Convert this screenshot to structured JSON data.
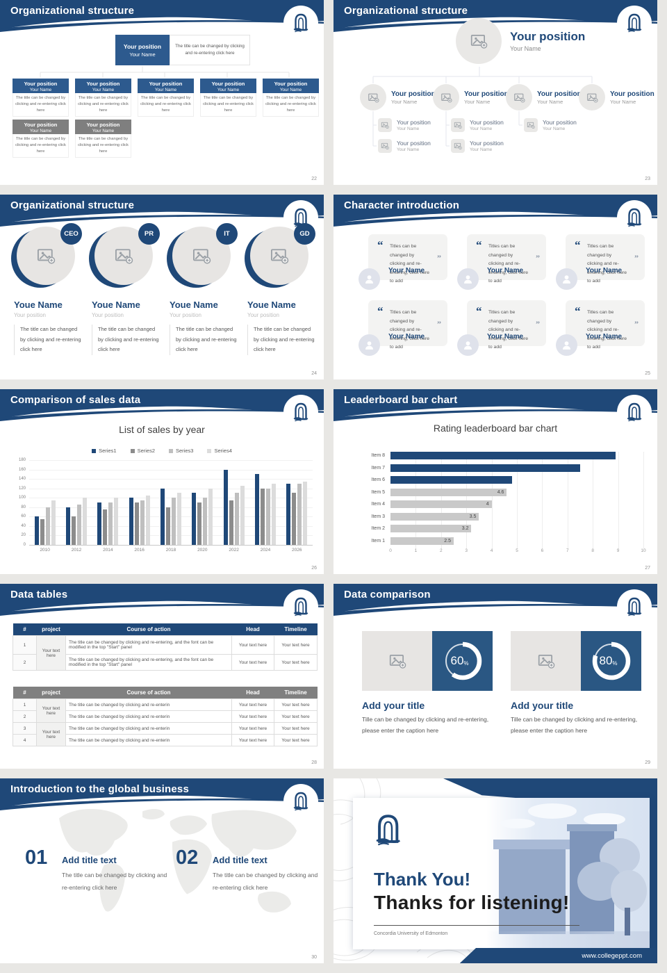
{
  "colors": {
    "primary": "#1F4878",
    "box_blue": "#2D5A8E",
    "box_gray": "#7F7F7F",
    "panel_blue": "#2A5783",
    "bar_gray": "#C9C9C9"
  },
  "chart_data": [
    {
      "type": "bar",
      "title": "List of sales by year",
      "categories": [
        "2010",
        "2012",
        "2014",
        "2016",
        "2018",
        "2020",
        "2022",
        "2024",
        "2026"
      ],
      "series": [
        {
          "name": "Series1",
          "values": [
            60,
            80,
            90,
            100,
            120,
            110,
            160,
            150,
            130
          ]
        },
        {
          "name": "Series2",
          "values": [
            55,
            60,
            75,
            90,
            80,
            90,
            95,
            120,
            110
          ]
        },
        {
          "name": "Series3",
          "values": [
            80,
            85,
            90,
            95,
            100,
            100,
            110,
            120,
            130
          ]
        },
        {
          "name": "Series4",
          "values": [
            95,
            100,
            100,
            105,
            110,
            120,
            125,
            130,
            135
          ]
        }
      ],
      "colors": [
        "#1F4878",
        "#8C8C8C",
        "#BFBFBF",
        "#DCDCDC"
      ],
      "ylim": [
        0,
        180
      ],
      "ytick_step": 20,
      "grid": true,
      "legend_position": "top"
    },
    {
      "type": "bar-horizontal",
      "title": "Rating leaderboard bar chart",
      "categories": [
        "Item 8",
        "Item 7",
        "Item 6",
        "Item 5",
        "Item 4",
        "Item 3",
        "Item 2",
        "Item 1"
      ],
      "values": [
        8.9,
        7.5,
        4.8,
        4.6,
        4,
        3.5,
        3.2,
        2.5
      ],
      "data_labels": [
        null,
        null,
        null,
        "4.6",
        "4",
        "3.5",
        "3.2",
        "2.5"
      ],
      "bar_colors": [
        "#1F4878",
        "#1F4878",
        "#1F4878",
        "#C9C9C9",
        "#C9C9C9",
        "#C9C9C9",
        "#C9C9C9",
        "#C9C9C9"
      ],
      "xlim": [
        0,
        10
      ],
      "xtick_step": 1,
      "grid": true
    }
  ],
  "s22": {
    "title": "Organizational structure",
    "page": "22",
    "root": {
      "position": "Your position",
      "name": "Your Name",
      "desc": "The title can be changed by clicking and re-entering click here"
    },
    "row1": [
      {
        "position": "Your position",
        "name": "Your Name",
        "desc": "The title can be changed by clicking and re-entering click here"
      },
      {
        "position": "Your position",
        "name": "Your Name",
        "desc": "The title can be changed by clicking and re-entering click here"
      },
      {
        "position": "Your position",
        "name": "Your Name",
        "desc": "The title can be changed by clicking and re-entering click here"
      },
      {
        "position": "Your position",
        "name": "Your Name",
        "desc": "The title can be changed by clicking and re-entering click here"
      },
      {
        "position": "Your position",
        "name": "Your Name",
        "desc": "The title can be changed by clicking and re-entering click here"
      }
    ],
    "row2": [
      {
        "position": "Your position",
        "name": "Your Name",
        "desc": "The title can be changed by clicking and re-entering click here"
      },
      {
        "position": "Your position",
        "name": "Your Name",
        "desc": "The title can be changed by clicking and re-entering click here"
      }
    ]
  },
  "s23": {
    "title": "Organizational structure",
    "page": "23",
    "root": {
      "position": "Your position",
      "name": "Your Name"
    },
    "level1": [
      {
        "position": "Your position",
        "name": "Your Name"
      },
      {
        "position": "Your position",
        "name": "Your Name"
      },
      {
        "position": "Your position",
        "name": "Your Name"
      },
      {
        "position": "Your position",
        "name": "Your Name"
      }
    ],
    "level2": [
      {
        "position": "Your position",
        "name": "Your Name"
      },
      {
        "position": "Your position",
        "name": "Your Name"
      },
      {
        "position": "Your position",
        "name": "Your Name"
      }
    ],
    "level3": [
      {
        "position": "Your position",
        "name": "Your Name"
      },
      {
        "position": "Your position",
        "name": "Your Name"
      }
    ]
  },
  "s24": {
    "title": "Organizational structure",
    "page": "24",
    "members": [
      {
        "badge": "CEO",
        "name": "Youe Name",
        "position": "Your position",
        "desc": "The title can be changed by clicking and re-entering click here"
      },
      {
        "badge": "PR",
        "name": "Youe Name",
        "position": "Your position",
        "desc": "The title can be changed by clicking and re-entering click here"
      },
      {
        "badge": "IT",
        "name": "Youe Name",
        "position": "Your position",
        "desc": "The title can be changed by clicking and re-entering click here"
      },
      {
        "badge": "GD",
        "name": "Youe Name",
        "position": "Your position",
        "desc": "The title can be changed by clicking and re-entering click here"
      }
    ]
  },
  "s25": {
    "title": "Character introduction",
    "page": "25",
    "quote_open": "“",
    "quote_close": "”",
    "cards": [
      {
        "quote": "Titles can be changed by clicking and re-entering, click here to add",
        "name": "Your Name"
      },
      {
        "quote": "Titles can be changed by clicking and re-entering, click here to add",
        "name": "Your Name"
      },
      {
        "quote": "Titles can be changed by clicking and re-entering, click here to add",
        "name": "Your Name"
      },
      {
        "quote": "Titles can be changed by clicking and re-entering, click here to add",
        "name": "Your Name"
      },
      {
        "quote": "Titles can be changed by clicking and re-entering, click here to add",
        "name": "Your Name"
      },
      {
        "quote": "Titles can be changed by clicking and re-entering, click here to add",
        "name": "Your Name"
      }
    ]
  },
  "s26": {
    "title": "Comparison of sales data",
    "page": "26"
  },
  "s27": {
    "title": "Leaderboard bar chart",
    "page": "27"
  },
  "s28": {
    "title": "Data tables",
    "page": "28",
    "headers": [
      "#",
      "project",
      "Course of action",
      "Head",
      "Timeline"
    ],
    "t1": {
      "project": "Your text here",
      "rows": [
        {
          "num": "1",
          "action": "The title can be changed by clicking and re-entering, and the font can be modified in the top \"Start\" panel",
          "head": "Your text here",
          "timeline": "Your text here"
        },
        {
          "num": "2",
          "action": "The title can be changed by clicking and re-entering, and the font can be modified in the top \"Start\" panel",
          "head": "Your text here",
          "timeline": "Your text here"
        }
      ]
    },
    "t2": {
      "project_a": "Your text here",
      "project_b": "Your text here",
      "rows": [
        {
          "num": "1",
          "action": "The title can be changed by clicking and re-enterin",
          "head": "Your text here",
          "timeline": "Your text here"
        },
        {
          "num": "2",
          "action": "The title can be changed by clicking and re-enterin",
          "head": "Your text here",
          "timeline": "Your text here"
        },
        {
          "num": "3",
          "action": "The title can be changed by clicking and re-enterin",
          "head": "Your text here",
          "timeline": "Your text here"
        },
        {
          "num": "4",
          "action": "The title can be changed by clicking and re-enterin",
          "head": "Your text here",
          "timeline": "Your text here"
        }
      ]
    }
  },
  "s29": {
    "title": "Data comparison",
    "page": "29",
    "panels": [
      {
        "percent": 60,
        "percent_label": "60",
        "percent_sign": "%",
        "title": "Add your title",
        "caption": "Tille can be changed by clicking and re-entering, please enter the caption here"
      },
      {
        "percent": 80,
        "percent_label": "80",
        "percent_sign": "%",
        "title": "Add your title",
        "caption": "Tille can be changed by clicking and re-entering, please enter the caption here"
      }
    ]
  },
  "s30": {
    "title": "Introduction to the global business",
    "page": "30",
    "items": [
      {
        "num": "01",
        "title": "Add title text",
        "desc": "The title can be changed by clicking and re-entering click here"
      },
      {
        "num": "02",
        "title": "Add title text",
        "desc": "The title can be changed by clicking and re-entering click here"
      }
    ]
  },
  "s31": {
    "line1": "Thank You!",
    "line2": "Thanks for listening!",
    "subtitle": "Concordia University of Edmonton",
    "url": "www.collegeppt.com"
  }
}
